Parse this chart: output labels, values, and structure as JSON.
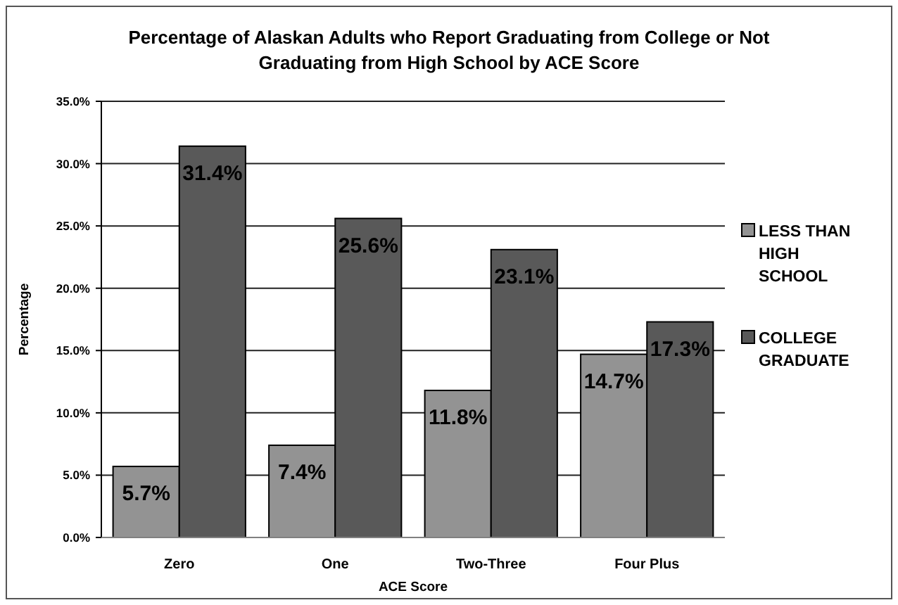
{
  "chart_data": {
    "type": "bar",
    "title": "Percentage of Alaskan Adults who Report Graduating from College or Not Graduating from High School by ACE Score",
    "xlabel": "ACE Score",
    "ylabel": "Percentage",
    "categories": [
      "Zero",
      "One",
      "Two-Three",
      "Four Plus"
    ],
    "series": [
      {
        "name": "LESS THAN HIGH SCHOOL",
        "color": "#939393",
        "values": [
          5.7,
          7.4,
          11.8,
          14.7
        ],
        "value_labels": [
          "5.7%",
          "7.4%",
          "11.8%",
          "14.7%"
        ]
      },
      {
        "name": "COLLEGE GRADUATE",
        "color": "#595959",
        "values": [
          31.4,
          25.6,
          23.1,
          17.3
        ],
        "value_labels": [
          "31.4%",
          "25.6%",
          "23.1%",
          "17.3%"
        ]
      }
    ],
    "ylim": [
      0,
      35
    ],
    "yticks": [
      {
        "value": 0,
        "label": "0.0%"
      },
      {
        "value": 5,
        "label": "5.0%"
      },
      {
        "value": 10,
        "label": "10.0%"
      },
      {
        "value": 15,
        "label": "15.0%"
      },
      {
        "value": 20,
        "label": "20.0%"
      },
      {
        "value": 25,
        "label": "25.0%"
      },
      {
        "value": 30,
        "label": "30.0%"
      },
      {
        "value": 35,
        "label": "35.0%"
      }
    ],
    "grid": "y",
    "legend": "right"
  }
}
